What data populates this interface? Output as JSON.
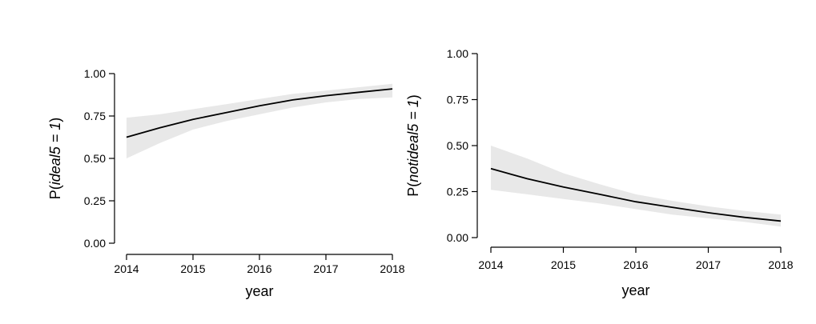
{
  "chart_data": [
    {
      "type": "line",
      "title": "",
      "xlabel": "year",
      "ylabel_prefix": "P(",
      "ylabel_italic": "ideal5 = 1",
      "ylabel_suffix": ")",
      "xlim": [
        2014,
        2018
      ],
      "ylim": [
        0,
        1
      ],
      "xticks": [
        "2014",
        "2015",
        "2016",
        "2017",
        "2018"
      ],
      "yticks": [
        "0.00",
        "0.25",
        "0.50",
        "0.75",
        "1.00"
      ],
      "grid": false,
      "band_color": "#e8e8e8",
      "line_color": "#000000",
      "series": [
        {
          "x": [
            2014,
            2014.5,
            2015,
            2015.5,
            2016,
            2016.5,
            2017,
            2017.5,
            2018
          ],
          "y": [
            0.625,
            0.68,
            0.73,
            0.77,
            0.81,
            0.845,
            0.87,
            0.89,
            0.91
          ],
          "lower": [
            0.5,
            0.59,
            0.67,
            0.72,
            0.76,
            0.8,
            0.83,
            0.85,
            0.86
          ],
          "upper": [
            0.74,
            0.76,
            0.79,
            0.82,
            0.85,
            0.88,
            0.9,
            0.92,
            0.94
          ]
        }
      ]
    },
    {
      "type": "line",
      "title": "",
      "xlabel": "year",
      "ylabel_prefix": "P(",
      "ylabel_italic": "notideal5 = 1",
      "ylabel_suffix": ")",
      "xlim": [
        2014,
        2018
      ],
      "ylim": [
        0,
        1
      ],
      "xticks": [
        "2014",
        "2015",
        "2016",
        "2017",
        "2018"
      ],
      "yticks": [
        "0.00",
        "0.25",
        "0.50",
        "0.75",
        "1.00"
      ],
      "grid": false,
      "band_color": "#e8e8e8",
      "line_color": "#000000",
      "series": [
        {
          "x": [
            2014,
            2014.5,
            2015,
            2015.5,
            2016,
            2016.5,
            2017,
            2017.5,
            2018
          ],
          "y": [
            0.375,
            0.32,
            0.275,
            0.235,
            0.195,
            0.165,
            0.135,
            0.11,
            0.09
          ],
          "lower": [
            0.26,
            0.235,
            0.21,
            0.185,
            0.155,
            0.125,
            0.105,
            0.085,
            0.06
          ],
          "upper": [
            0.5,
            0.43,
            0.35,
            0.29,
            0.235,
            0.2,
            0.17,
            0.145,
            0.125
          ]
        }
      ]
    }
  ]
}
